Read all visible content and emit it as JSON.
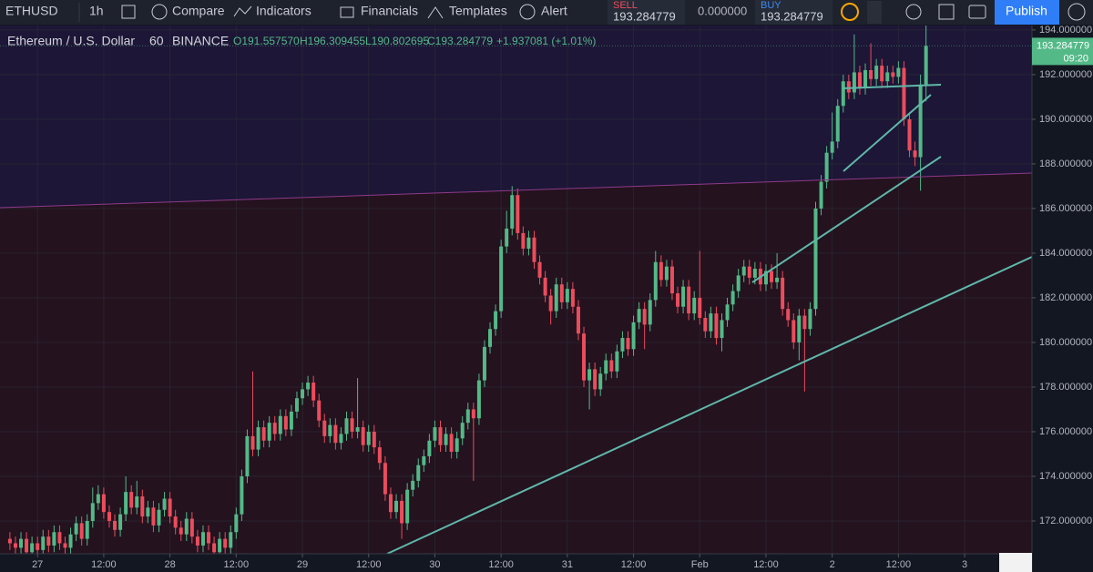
{
  "toolbar": {
    "symbol": "ETHUSD",
    "interval": "1h",
    "compare": "Compare",
    "indicators": "Indicators",
    "financials": "Financials",
    "templates": "Templates",
    "alert": "Alert",
    "sell_label": "SELL",
    "sell_price": "193.284779",
    "spread": "0.000000",
    "buy_label": "BUY",
    "buy_price": "193.284779",
    "publish": "Publish"
  },
  "chart_data": {
    "type": "candlestick",
    "title": "Ethereum / U.S. Dollar",
    "interval": "60",
    "exchange": "BINANCE",
    "ohlc_legend": {
      "open": "O191.557570",
      "high": "H196.309455",
      "low": "L190.802695",
      "close": "C193.284779",
      "change": "+1.937081 (+1.01%)"
    },
    "last_price_label": "193.284779",
    "countdown": "09:20",
    "up_color": "#53b987",
    "down_color": "#eb4d5c",
    "xlim": [
      -6.8,
      180.2
    ],
    "ylim": [
      170.53,
      194.2
    ],
    "xticks": [
      {
        "value": 0,
        "label": "27"
      },
      {
        "value": 12,
        "label": "12:00"
      },
      {
        "value": 24,
        "label": "28"
      },
      {
        "value": 36,
        "label": "12:00"
      },
      {
        "value": 48,
        "label": "29"
      },
      {
        "value": 60,
        "label": "12:00"
      },
      {
        "value": 72,
        "label": "30"
      },
      {
        "value": 84,
        "label": "12:00"
      },
      {
        "value": 96,
        "label": "31"
      },
      {
        "value": 108,
        "label": "12:00"
      },
      {
        "value": 120,
        "label": "Feb"
      },
      {
        "value": 132,
        "label": "12:00"
      },
      {
        "value": 144,
        "label": "2"
      },
      {
        "value": 156,
        "label": "12:00"
      },
      {
        "value": 168,
        "label": "3"
      }
    ],
    "yticks": [
      {
        "value": 172,
        "label": "172.000000"
      },
      {
        "value": 174,
        "label": "174.000000"
      },
      {
        "value": 176,
        "label": "176.000000"
      },
      {
        "value": 178,
        "label": "178.000000"
      },
      {
        "value": 180,
        "label": "180.000000"
      },
      {
        "value": 182,
        "label": "182.000000"
      },
      {
        "value": 184,
        "label": "184.000000"
      },
      {
        "value": 186,
        "label": "186.000000"
      },
      {
        "value": 188,
        "label": "188.000000"
      },
      {
        "value": 190,
        "label": "190.000000"
      },
      {
        "value": 192,
        "label": "192.000000"
      },
      {
        "value": 194,
        "label": "194.000000"
      }
    ],
    "x": [
      -5,
      -4,
      -3,
      -2,
      -1,
      0,
      1,
      2,
      3,
      4,
      5,
      6,
      7,
      8,
      9,
      10,
      11,
      12,
      13,
      14,
      15,
      16,
      17,
      18,
      19,
      20,
      21,
      22,
      23,
      24,
      25,
      26,
      27,
      28,
      29,
      30,
      31,
      32,
      33,
      34,
      35,
      36,
      37,
      38,
      39,
      40,
      41,
      42,
      43,
      44,
      45,
      46,
      47,
      48,
      49,
      50,
      51,
      52,
      53,
      54,
      55,
      56,
      57,
      58,
      59,
      60,
      61,
      62,
      63,
      64,
      65,
      66,
      67,
      68,
      69,
      70,
      71,
      72,
      73,
      74,
      75,
      76,
      77,
      78,
      79,
      80,
      81,
      82,
      83,
      84,
      85,
      86,
      87,
      88,
      89,
      90,
      91,
      92,
      93,
      94,
      95,
      96,
      97,
      98,
      99,
      100,
      101,
      102,
      103,
      104,
      105,
      106,
      107,
      108,
      109,
      110,
      111,
      112,
      113,
      114,
      115,
      116,
      117,
      118,
      119,
      120,
      121,
      122,
      123,
      124,
      125,
      126,
      127,
      128,
      129,
      130,
      131,
      132,
      133,
      134,
      135,
      136,
      137,
      138,
      139,
      140,
      141,
      142,
      143,
      144,
      145,
      146,
      147,
      148,
      149,
      150,
      151,
      152,
      153,
      154,
      155,
      156,
      157,
      158,
      159,
      160,
      161
    ],
    "open": [
      171.2,
      171.0,
      170.8,
      171.2,
      170.6,
      171.0,
      170.7,
      171.3,
      170.9,
      171.5,
      171.0,
      170.8,
      171.4,
      171.9,
      171.2,
      172.0,
      172.8,
      173.2,
      172.4,
      172.0,
      171.6,
      172.3,
      173.3,
      172.6,
      173.1,
      172.2,
      172.6,
      171.8,
      172.5,
      173.0,
      172.2,
      171.7,
      171.4,
      172.1,
      171.3,
      170.9,
      171.5,
      171.0,
      170.6,
      171.2,
      170.8,
      171.5,
      172.3,
      174.0,
      175.8,
      175.2,
      176.2,
      175.6,
      176.4,
      175.9,
      176.7,
      176.1,
      176.9,
      177.5,
      177.9,
      178.2,
      177.4,
      176.5,
      175.8,
      176.3,
      175.5,
      175.9,
      176.6,
      176.0,
      176.2,
      175.4,
      176.0,
      175.3,
      174.6,
      173.2,
      172.4,
      172.9,
      171.9,
      173.4,
      173.8,
      174.5,
      174.9,
      175.6,
      176.2,
      175.4,
      175.9,
      175.1,
      175.7,
      176.4,
      177.0,
      176.6,
      178.3,
      179.8,
      180.6,
      181.4,
      184.3,
      185.1,
      186.6,
      184.9,
      184.2,
      184.7,
      183.6,
      182.9,
      182.1,
      181.4,
      182.6,
      181.8,
      182.4,
      181.6,
      180.4,
      178.3,
      178.8,
      177.9,
      178.6,
      179.2,
      178.7,
      179.6,
      180.2,
      179.7,
      180.9,
      181.5,
      180.8,
      181.9,
      183.6,
      182.8,
      183.4,
      182.2,
      181.6,
      182.5,
      181.3,
      182.0,
      181.1,
      180.5,
      181.3,
      180.2,
      181.0,
      181.7,
      182.3,
      183.0,
      183.4,
      182.9,
      183.3,
      182.6,
      183.2,
      182.7,
      182.9,
      181.5,
      181.0,
      180.0,
      181.2,
      180.6,
      181.5,
      186.0,
      187.2,
      188.5,
      189.0,
      190.6,
      191.7,
      191.2,
      192.1,
      191.4,
      192.2,
      191.8,
      192.4,
      191.7,
      192.1,
      191.9,
      192.3,
      190.0,
      188.6,
      188.3,
      191.55757
    ],
    "high": [
      171.5,
      171.3,
      171.5,
      171.5,
      171.3,
      171.3,
      171.6,
      171.6,
      171.8,
      171.8,
      171.3,
      171.7,
      172.2,
      172.2,
      172.3,
      173.5,
      173.6,
      173.5,
      172.7,
      172.3,
      172.6,
      174.0,
      173.6,
      173.8,
      173.4,
      172.9,
      172.9,
      172.8,
      173.3,
      173.3,
      172.5,
      172.0,
      172.4,
      172.4,
      171.6,
      171.8,
      171.8,
      171.3,
      171.5,
      171.5,
      171.8,
      172.6,
      174.3,
      176.1,
      178.7,
      176.5,
      176.5,
      176.7,
      176.7,
      177.0,
      177.0,
      177.2,
      177.8,
      178.2,
      178.5,
      178.5,
      177.7,
      176.8,
      176.6,
      176.6,
      176.2,
      176.9,
      176.9,
      178.4,
      176.5,
      176.3,
      176.3,
      175.6,
      174.9,
      173.5,
      173.2,
      173.2,
      173.7,
      174.1,
      174.8,
      175.2,
      175.9,
      176.5,
      176.5,
      176.2,
      176.2,
      176.0,
      176.7,
      177.3,
      177.3,
      178.6,
      180.1,
      180.9,
      181.7,
      184.6,
      185.9,
      187.0,
      186.9,
      185.2,
      185.0,
      185.0,
      183.9,
      183.2,
      182.4,
      182.9,
      182.9,
      182.7,
      182.7,
      181.9,
      180.7,
      179.1,
      179.1,
      178.9,
      179.5,
      179.5,
      179.9,
      180.5,
      180.5,
      181.2,
      181.8,
      181.8,
      182.2,
      184.1,
      183.9,
      183.7,
      183.7,
      182.5,
      182.8,
      182.8,
      182.3,
      184.1,
      181.4,
      181.6,
      181.6,
      181.3,
      182.0,
      182.6,
      183.3,
      183.7,
      183.7,
      183.6,
      183.6,
      183.5,
      183.5,
      184.0,
      183.2,
      181.8,
      181.3,
      181.5,
      181.5,
      181.8,
      186.3,
      187.5,
      188.8,
      190.3,
      190.9,
      192.0,
      192.0,
      193.8,
      192.4,
      192.5,
      193.4,
      192.7,
      192.7,
      192.4,
      192.4,
      192.6,
      192.6,
      190.3,
      189.0,
      192.0,
      196.309455
    ],
    "low": [
      170.7,
      170.5,
      170.5,
      170.3,
      170.3,
      170.4,
      170.4,
      170.6,
      170.6,
      170.7,
      170.5,
      170.5,
      171.1,
      170.9,
      170.9,
      171.7,
      172.5,
      172.1,
      171.7,
      171.3,
      171.3,
      172.0,
      172.3,
      172.3,
      171.9,
      171.9,
      171.5,
      171.5,
      172.2,
      171.9,
      171.4,
      171.1,
      171.1,
      171.0,
      170.6,
      170.6,
      170.7,
      170.3,
      170.3,
      170.5,
      170.5,
      171.2,
      172.0,
      173.7,
      174.9,
      174.9,
      175.3,
      175.3,
      175.6,
      175.6,
      175.8,
      175.8,
      176.6,
      177.2,
      177.6,
      177.1,
      176.2,
      175.5,
      175.5,
      175.2,
      175.2,
      175.6,
      175.7,
      175.7,
      175.1,
      175.1,
      175.0,
      174.3,
      172.9,
      172.1,
      172.1,
      171.2,
      171.6,
      173.1,
      173.5,
      174.2,
      174.6,
      175.3,
      175.1,
      175.1,
      174.8,
      174.8,
      175.4,
      176.1,
      173.8,
      176.3,
      178.0,
      179.5,
      180.3,
      181.1,
      184.0,
      184.8,
      184.6,
      183.9,
      183.9,
      183.3,
      182.6,
      181.8,
      180.8,
      181.1,
      181.5,
      181.5,
      181.3,
      180.1,
      178.0,
      177.0,
      177.6,
      177.6,
      178.3,
      178.4,
      178.4,
      179.3,
      179.4,
      179.4,
      180.6,
      179.7,
      180.5,
      181.6,
      182.5,
      182.5,
      181.9,
      181.3,
      181.3,
      181.0,
      181.0,
      180.8,
      180.2,
      180.2,
      179.9,
      179.6,
      180.7,
      181.4,
      182.0,
      182.7,
      182.6,
      182.6,
      182.3,
      182.3,
      182.4,
      182.4,
      181.2,
      180.7,
      179.7,
      179.2,
      177.8,
      180.3,
      181.2,
      185.7,
      186.9,
      188.2,
      188.7,
      190.3,
      190.9,
      190.9,
      191.1,
      191.1,
      191.5,
      191.5,
      191.4,
      191.4,
      191.6,
      191.6,
      189.7,
      188.3,
      187.9,
      186.8,
      190.802695
    ],
    "close": [
      171.0,
      170.8,
      171.2,
      170.6,
      171.0,
      170.7,
      171.3,
      170.9,
      171.5,
      171.0,
      170.8,
      171.4,
      171.9,
      171.2,
      172.0,
      172.8,
      173.2,
      172.4,
      172.0,
      171.6,
      172.3,
      173.3,
      172.6,
      173.1,
      172.2,
      172.6,
      171.8,
      172.5,
      173.0,
      172.2,
      171.7,
      171.4,
      172.1,
      171.3,
      170.9,
      171.5,
      171.0,
      170.6,
      171.2,
      170.8,
      171.5,
      172.3,
      174.0,
      175.8,
      175.2,
      176.2,
      175.6,
      176.4,
      175.9,
      176.7,
      176.1,
      176.9,
      177.5,
      177.9,
      178.2,
      177.4,
      176.5,
      175.8,
      176.3,
      175.5,
      175.9,
      176.6,
      176.0,
      176.2,
      175.4,
      176.0,
      175.3,
      174.6,
      173.2,
      172.4,
      172.9,
      171.9,
      173.4,
      173.8,
      174.5,
      174.9,
      175.6,
      176.2,
      175.4,
      175.9,
      175.1,
      175.7,
      176.4,
      177.0,
      176.6,
      178.3,
      179.8,
      180.6,
      181.4,
      184.3,
      185.1,
      186.6,
      184.9,
      184.2,
      184.7,
      183.6,
      182.9,
      182.1,
      181.4,
      182.6,
      181.8,
      182.4,
      181.6,
      180.4,
      178.3,
      178.8,
      177.9,
      178.6,
      179.2,
      178.7,
      179.6,
      180.2,
      179.7,
      180.9,
      181.5,
      180.8,
      181.9,
      183.6,
      182.8,
      183.4,
      182.2,
      181.6,
      182.5,
      181.3,
      182.0,
      181.1,
      180.5,
      181.3,
      180.2,
      181.0,
      181.7,
      182.3,
      183.0,
      183.4,
      182.9,
      183.3,
      182.6,
      183.2,
      182.7,
      182.9,
      181.5,
      181.0,
      180.0,
      181.2,
      180.6,
      181.5,
      186.0,
      187.2,
      188.5,
      189.0,
      190.6,
      191.7,
      191.2,
      192.1,
      191.4,
      192.2,
      191.8,
      192.4,
      191.7,
      192.1,
      191.9,
      192.3,
      190.0,
      188.6,
      188.3,
      191.55757,
      193.284779
    ]
  }
}
